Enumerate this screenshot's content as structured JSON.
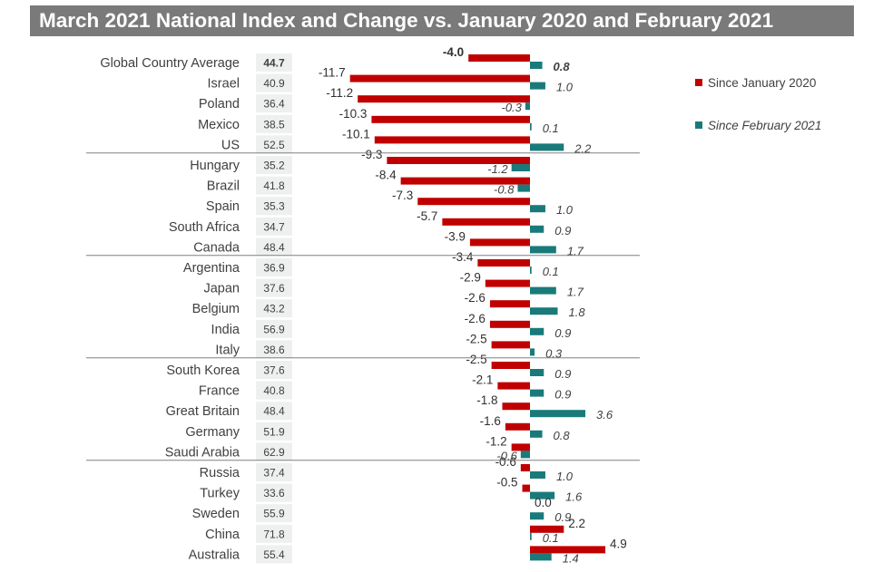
{
  "chart_data": {
    "type": "bar",
    "orientation": "horizontal",
    "title": "March 2021 National Index and Change vs. January 2020 and February 2021",
    "categories": [
      "Global Country Average",
      "Israel",
      "Poland",
      "Mexico",
      "US",
      "Hungary",
      "Brazil",
      "Spain",
      "South Africa",
      "Canada",
      "Argentina",
      "Japan",
      "Belgium",
      "India",
      "Italy",
      "South Korea",
      "France",
      "Great Britain",
      "Germany",
      "Saudi Arabia",
      "Russia",
      "Turkey",
      "Sweden",
      "China",
      "Australia"
    ],
    "index_values": [
      "44.7",
      "40.9",
      "36.4",
      "38.5",
      "52.5",
      "35.2",
      "41.8",
      "35.3",
      "34.7",
      "48.4",
      "36.9",
      "37.6",
      "43.2",
      "56.9",
      "38.6",
      "37.6",
      "40.8",
      "48.4",
      "51.9",
      "62.9",
      "37.4",
      "33.6",
      "55.9",
      "71.8",
      "55.4"
    ],
    "series": [
      {
        "name": "Since January 2020",
        "color": "#c00000",
        "values": [
          -4.0,
          -11.7,
          -11.2,
          -10.3,
          -10.1,
          -9.3,
          -8.4,
          -7.3,
          -5.7,
          -3.9,
          -3.4,
          -2.9,
          -2.6,
          -2.6,
          -2.5,
          -2.5,
          -2.1,
          -1.8,
          -1.6,
          -1.2,
          -0.6,
          -0.5,
          0.0,
          2.2,
          4.9
        ],
        "labels": [
          "-4.0",
          "-11.7",
          "-11.2",
          "-10.3",
          "-10.1",
          "-9.3",
          "-8.4",
          "-7.3",
          "-5.7",
          "-3.9",
          "-3.4",
          "-2.9",
          "-2.6",
          "-2.6",
          "-2.5",
          "-2.5",
          "-2.1",
          "-1.8",
          "-1.6",
          "-1.2",
          "-0.6",
          "-0.5",
          "0.0",
          "2.2",
          "4.9"
        ]
      },
      {
        "name": "Since February 2021",
        "color": "#1a7a7a",
        "values": [
          0.8,
          1.0,
          -0.3,
          0.1,
          2.2,
          -1.2,
          -0.8,
          1.0,
          0.9,
          1.7,
          0.1,
          1.7,
          1.8,
          0.9,
          0.3,
          0.9,
          0.9,
          3.6,
          0.8,
          -0.6,
          1.0,
          1.6,
          0.9,
          0.1,
          1.4
        ],
        "labels": [
          "0.8",
          "1.0",
          "-0.3",
          "0.1",
          "2.2",
          "-1.2",
          "-0.8",
          "1.0",
          "0.9",
          "1.7",
          "0.1",
          "1.7",
          "1.8",
          "0.9",
          "0.3",
          "0.9",
          "0.9",
          "3.6",
          "0.8",
          "-0.6",
          "1.0",
          "1.6",
          "0.9",
          "0.1",
          "1.4"
        ]
      }
    ],
    "group_sizes": [
      5,
      5,
      5,
      5,
      5
    ],
    "xlim": [
      -12,
      5
    ],
    "legend_position": "right"
  },
  "colors": {
    "title_background": "#7a7a7a",
    "index_box": "#edf0ee",
    "category_text": "#404040",
    "divider": "#808080"
  }
}
